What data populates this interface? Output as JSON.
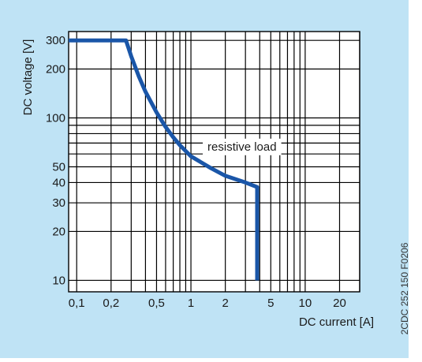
{
  "chart_data": {
    "type": "line",
    "title": "",
    "xlabel": "DC current [A]",
    "ylabel": "DC voltage [V]",
    "x_scale": "log",
    "y_scale": "log",
    "xlim": [
      0.085,
      30
    ],
    "ylim": [
      8.5,
      340
    ],
    "grid": true,
    "x_ticks": [
      0.1,
      0.2,
      0.5,
      1,
      2,
      5,
      10,
      20
    ],
    "x_tick_labels": [
      "0,1",
      "0,2",
      "0,5",
      "1",
      "2",
      "5",
      "10",
      "20"
    ],
    "x_gridlines": [
      0.1,
      0.2,
      0.3,
      0.4,
      0.5,
      0.6,
      0.7,
      0.8,
      0.9,
      1,
      2,
      3,
      4,
      5,
      6,
      7,
      8,
      9,
      10,
      20,
      30
    ],
    "y_ticks": [
      10,
      20,
      30,
      40,
      50,
      100,
      200,
      300
    ],
    "y_tick_labels": [
      "10",
      "20",
      "30",
      "40",
      "50",
      "100",
      "200",
      "300"
    ],
    "y_gridlines": [
      10,
      20,
      30,
      40,
      50,
      60,
      70,
      80,
      90,
      100,
      200,
      300
    ],
    "series": [
      {
        "name": "",
        "color": "#1a56a8",
        "points": [
          [
            0.085,
            300
          ],
          [
            0.27,
            300
          ],
          [
            0.3,
            240
          ],
          [
            0.35,
            180
          ],
          [
            0.4,
            145
          ],
          [
            0.5,
            108
          ],
          [
            0.6,
            88
          ],
          [
            0.7,
            76
          ],
          [
            0.8,
            68
          ],
          [
            1,
            58
          ],
          [
            1.5,
            49
          ],
          [
            2,
            44
          ],
          [
            3,
            40
          ],
          [
            3.8,
            37.5
          ],
          [
            3.8,
            10
          ]
        ]
      }
    ],
    "annotations": [
      {
        "text": "resistive load",
        "x": 2.8,
        "y": 63
      }
    ]
  },
  "side_code": "2CDC 252 150 F0206",
  "colors": {
    "panel_bg": "#bfe3f5",
    "plot_bg": "#ffffff",
    "grid": "#000000",
    "curve": "#1a56a8"
  }
}
